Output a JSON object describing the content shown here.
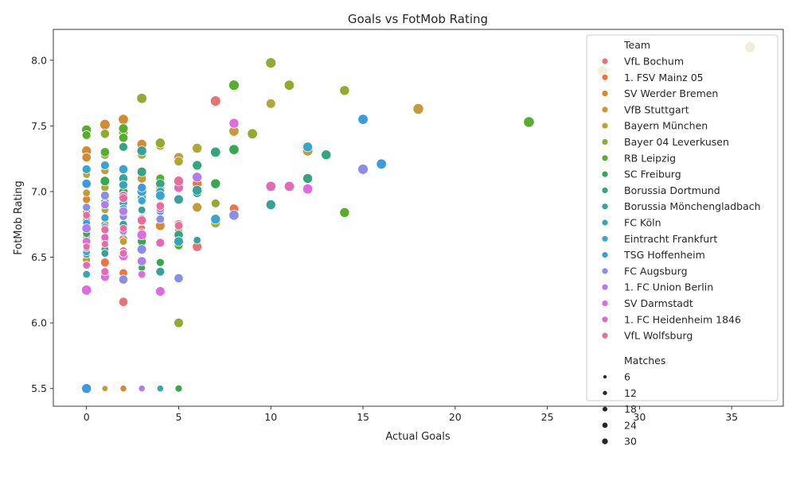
{
  "chart_data": {
    "type": "scatter",
    "title": "Goals vs FotMob Rating",
    "xlabel": "Actual Goals",
    "ylabel": "FotMob Rating",
    "xlim": [
      -1.8,
      37.8
    ],
    "ylim": [
      5.365,
      8.235
    ],
    "xticks": [
      0,
      5,
      10,
      15,
      20,
      25,
      30,
      35
    ],
    "yticks": [
      5.5,
      6.0,
      6.5,
      7.0,
      7.5,
      8.0
    ],
    "ytick_labels": [
      "5.5",
      "6.0",
      "6.5",
      "7.0",
      "7.5",
      "8.0"
    ],
    "grid": false,
    "legend": {
      "placement": "right",
      "team_title": "Team",
      "size_title": "Matches",
      "size_entries": [
        {
          "label": "6",
          "value": 6
        },
        {
          "label": "12",
          "value": 12
        },
        {
          "label": "18",
          "value": 18
        },
        {
          "label": "24",
          "value": 24
        },
        {
          "label": "30",
          "value": 30
        }
      ]
    },
    "series": [
      {
        "name": "VfL Bochum",
        "color": "#e8727a",
        "points": [
          [
            7,
            7.69,
            28
          ],
          [
            2,
            6.16,
            20
          ],
          [
            6,
            6.58,
            22
          ],
          [
            0,
            6.8,
            12
          ],
          [
            1,
            6.9,
            14
          ],
          [
            3,
            6.79,
            18
          ],
          [
            0,
            6.6,
            10
          ],
          [
            2,
            6.95,
            16
          ],
          [
            4,
            6.88,
            18
          ],
          [
            1,
            6.7,
            8
          ],
          [
            5,
            6.75,
            20
          ],
          [
            2,
            6.55,
            12
          ]
        ]
      },
      {
        "name": "1. FSV Mainz 05",
        "color": "#ee7440",
        "points": [
          [
            3,
            7.1,
            28
          ],
          [
            8,
            6.87,
            20
          ],
          [
            2,
            6.38,
            16
          ],
          [
            1,
            6.46,
            18
          ],
          [
            6,
            7.06,
            22
          ],
          [
            4,
            6.76,
            16
          ],
          [
            0,
            6.65,
            10
          ],
          [
            1,
            6.95,
            12
          ],
          [
            2,
            6.63,
            14
          ],
          [
            3,
            6.72,
            10
          ],
          [
            1,
            6.82,
            8
          ]
        ]
      },
      {
        "name": "SV Werder Bremen",
        "color": "#d48a33",
        "points": [
          [
            1,
            7.51,
            28
          ],
          [
            2,
            7.55,
            26
          ],
          [
            3,
            7.36,
            24
          ],
          [
            0,
            7.31,
            24
          ],
          [
            0,
            7.26,
            20
          ],
          [
            1,
            7.08,
            20
          ],
          [
            4,
            6.74,
            22
          ],
          [
            2,
            6.64,
            16
          ],
          [
            1,
            6.86,
            18
          ],
          [
            0,
            6.94,
            14
          ],
          [
            3,
            7.02,
            18
          ],
          [
            2,
            7.07,
            16
          ],
          [
            1,
            5.5,
            6
          ],
          [
            2,
            5.5,
            8
          ]
        ]
      },
      {
        "name": "VfB Stuttgart",
        "color": "#c49a3a",
        "points": [
          [
            18,
            7.63,
            30
          ],
          [
            12,
            7.31,
            28
          ],
          [
            8,
            7.46,
            26
          ],
          [
            5,
            7.26,
            24
          ],
          [
            6,
            6.88,
            22
          ],
          [
            4,
            7.03,
            18
          ],
          [
            3,
            7.1,
            20
          ],
          [
            2,
            6.9,
            16
          ],
          [
            1,
            7.16,
            14
          ],
          [
            0,
            6.99,
            12
          ],
          [
            2,
            6.62,
            12
          ],
          [
            0,
            6.48,
            14
          ],
          [
            1,
            5.5,
            6
          ]
        ]
      },
      {
        "name": "Bayern München",
        "color": "#b0a834",
        "points": [
          [
            36,
            8.1,
            30
          ],
          [
            28,
            7.92,
            28
          ],
          [
            10,
            7.67,
            22
          ],
          [
            6,
            7.33,
            24
          ],
          [
            7,
            6.76,
            22
          ],
          [
            5,
            7.23,
            20
          ],
          [
            3,
            7.28,
            18
          ],
          [
            4,
            7.35,
            20
          ],
          [
            2,
            7.04,
            16
          ],
          [
            1,
            7.03,
            14
          ],
          [
            0,
            7.13,
            12
          ],
          [
            1,
            6.86,
            10
          ],
          [
            5,
            6.7,
            14
          ],
          [
            0,
            6.72,
            10
          ],
          [
            3,
            5.5,
            6
          ]
        ]
      },
      {
        "name": "Bayer 04 Leverkusen",
        "color": "#90aa32",
        "points": [
          [
            10,
            7.98,
            28
          ],
          [
            11,
            7.81,
            26
          ],
          [
            14,
            7.77,
            24
          ],
          [
            3,
            7.71,
            26
          ],
          [
            9,
            7.44,
            26
          ],
          [
            4,
            7.37,
            24
          ],
          [
            2,
            7.45,
            22
          ],
          [
            1,
            7.44,
            20
          ],
          [
            5,
            6.0,
            22
          ],
          [
            1,
            7.28,
            18
          ],
          [
            0,
            7.17,
            16
          ],
          [
            2,
            7.06,
            16
          ],
          [
            7,
            6.91,
            18
          ],
          [
            1,
            6.75,
            14
          ],
          [
            0,
            6.65,
            12
          ]
        ]
      },
      {
        "name": "RB Leipzig",
        "color": "#56ae2c",
        "points": [
          [
            24,
            7.53,
            30
          ],
          [
            8,
            7.81,
            28
          ],
          [
            14,
            6.84,
            24
          ],
          [
            0,
            7.47,
            24
          ],
          [
            2,
            7.48,
            22
          ],
          [
            1,
            7.3,
            20
          ],
          [
            0,
            7.43,
            18
          ],
          [
            2,
            7.41,
            20
          ],
          [
            5,
            6.59,
            18
          ],
          [
            3,
            6.94,
            16
          ],
          [
            1,
            6.72,
            14
          ],
          [
            4,
            7.1,
            18
          ],
          [
            0,
            6.86,
            10
          ]
        ]
      },
      {
        "name": "SC Freiburg",
        "color": "#36a84e",
        "points": [
          [
            8,
            7.32,
            26
          ],
          [
            7,
            7.06,
            24
          ],
          [
            1,
            7.08,
            22
          ],
          [
            2,
            7.0,
            20
          ],
          [
            3,
            6.62,
            18
          ],
          [
            0,
            6.77,
            16
          ],
          [
            4,
            6.46,
            14
          ],
          [
            1,
            6.55,
            14
          ],
          [
            5,
            5.5,
            10
          ],
          [
            2,
            6.86,
            12
          ],
          [
            3,
            6.42,
            10
          ],
          [
            0,
            6.68,
            12
          ]
        ]
      },
      {
        "name": "Borussia Dortmund",
        "color": "#33a57f",
        "points": [
          [
            13,
            7.28,
            24
          ],
          [
            12,
            7.1,
            24
          ],
          [
            7,
            7.3,
            26
          ],
          [
            6,
            7.2,
            22
          ],
          [
            3,
            7.15,
            22
          ],
          [
            2,
            7.34,
            18
          ],
          [
            4,
            7.06,
            20
          ],
          [
            5,
            6.67,
            20
          ],
          [
            1,
            6.6,
            16
          ],
          [
            2,
            6.9,
            14
          ],
          [
            0,
            6.84,
            14
          ],
          [
            3,
            6.77,
            12
          ],
          [
            1,
            6.56,
            12
          ],
          [
            6,
            6.99,
            20
          ]
        ]
      },
      {
        "name": "Borussia Mönchengladbach",
        "color": "#36a39b",
        "points": [
          [
            10,
            6.9,
            24
          ],
          [
            6,
            7.01,
            24
          ],
          [
            5,
            6.94,
            22
          ],
          [
            3,
            7.31,
            24
          ],
          [
            2,
            7.1,
            20
          ],
          [
            4,
            6.39,
            18
          ],
          [
            1,
            6.96,
            18
          ],
          [
            0,
            7.06,
            16
          ],
          [
            2,
            6.75,
            14
          ],
          [
            1,
            6.53,
            12
          ],
          [
            3,
            6.86,
            12
          ],
          [
            6,
            6.63,
            12
          ],
          [
            0,
            6.52,
            10
          ]
        ]
      },
      {
        "name": "FC Köln",
        "color": "#38a4b4",
        "points": [
          [
            7,
            6.79,
            24
          ],
          [
            5,
            6.62,
            22
          ],
          [
            3,
            6.95,
            20
          ],
          [
            2,
            7.05,
            18
          ],
          [
            1,
            6.8,
            16
          ],
          [
            0,
            6.88,
            14
          ],
          [
            4,
            7.0,
            18
          ],
          [
            0,
            6.37,
            12
          ],
          [
            2,
            6.69,
            14
          ],
          [
            1,
            6.93,
            12
          ],
          [
            4,
            5.5,
            8
          ],
          [
            0,
            5.5,
            6
          ]
        ]
      },
      {
        "name": "Eintracht Frankfurt",
        "color": "#3aa4cf",
        "points": [
          [
            12,
            7.34,
            24
          ],
          [
            7,
            6.79,
            24
          ],
          [
            4,
            6.97,
            22
          ],
          [
            3,
            7.0,
            22
          ],
          [
            2,
            7.17,
            20
          ],
          [
            1,
            7.2,
            18
          ],
          [
            0,
            7.17,
            18
          ],
          [
            2,
            6.91,
            16
          ],
          [
            3,
            6.93,
            14
          ],
          [
            1,
            6.8,
            14
          ],
          [
            0,
            6.54,
            12
          ],
          [
            0,
            5.5,
            8
          ]
        ]
      },
      {
        "name": "TSG Hoffenheim",
        "color": "#3c9be0",
        "points": [
          [
            15,
            7.55,
            26
          ],
          [
            16,
            7.21,
            26
          ],
          [
            0,
            7.06,
            20
          ],
          [
            3,
            7.03,
            18
          ],
          [
            1,
            6.92,
            16
          ],
          [
            2,
            6.87,
            14
          ],
          [
            4,
            6.85,
            14
          ],
          [
            0,
            6.76,
            12
          ],
          [
            0,
            5.5,
            24
          ]
        ]
      },
      {
        "name": "FC Augsburg",
        "color": "#8a8ee8",
        "points": [
          [
            15,
            7.17,
            28
          ],
          [
            8,
            6.82,
            26
          ],
          [
            3,
            6.56,
            22
          ],
          [
            2,
            6.33,
            20
          ],
          [
            5,
            6.34,
            20
          ],
          [
            1,
            6.97,
            18
          ],
          [
            4,
            6.79,
            16
          ],
          [
            0,
            6.88,
            14
          ],
          [
            2,
            6.81,
            14
          ],
          [
            1,
            6.73,
            12
          ],
          [
            3,
            6.69,
            12
          ]
        ]
      },
      {
        "name": "1. FC Union Berlin",
        "color": "#b07ee8",
        "points": [
          [
            6,
            7.11,
            24
          ],
          [
            3,
            6.47,
            20
          ],
          [
            2,
            6.85,
            18
          ],
          [
            1,
            6.9,
            16
          ],
          [
            0,
            6.72,
            20
          ],
          [
            4,
            6.87,
            16
          ],
          [
            2,
            6.7,
            14
          ],
          [
            1,
            6.63,
            12
          ],
          [
            0,
            6.57,
            12
          ],
          [
            3,
            5.5,
            8
          ]
        ]
      },
      {
        "name": "SV Darmstadt",
        "color": "#df6be0",
        "points": [
          [
            12,
            7.02,
            26
          ],
          [
            8,
            7.52,
            24
          ],
          [
            3,
            6.67,
            24
          ],
          [
            4,
            6.24,
            22
          ],
          [
            2,
            6.51,
            22
          ],
          [
            1,
            6.38,
            20
          ],
          [
            0,
            6.25,
            26
          ],
          [
            1,
            6.35,
            18
          ],
          [
            0,
            6.62,
            16
          ],
          [
            2,
            6.53,
            14
          ],
          [
            3,
            6.37,
            12
          ]
        ]
      },
      {
        "name": "1. FC Heidenheim 1846",
        "color": "#e668bb",
        "points": [
          [
            10,
            7.04,
            26
          ],
          [
            11,
            7.04,
            26
          ],
          [
            5,
            7.03,
            22
          ],
          [
            4,
            6.61,
            18
          ],
          [
            3,
            6.79,
            18
          ],
          [
            2,
            6.97,
            18
          ],
          [
            1,
            6.65,
            14
          ],
          [
            0,
            6.44,
            12
          ],
          [
            1,
            6.39,
            14
          ],
          [
            2,
            6.53,
            12
          ],
          [
            4,
            6.89,
            14
          ]
        ]
      },
      {
        "name": "VfL Wolfsburg",
        "color": "#ea6c9d",
        "points": [
          [
            5,
            7.08,
            24
          ],
          [
            3,
            6.78,
            20
          ],
          [
            2,
            6.95,
            18
          ],
          [
            4,
            6.89,
            16
          ],
          [
            1,
            6.71,
            14
          ],
          [
            0,
            6.82,
            12
          ],
          [
            2,
            6.72,
            12
          ],
          [
            1,
            6.6,
            10
          ],
          [
            5,
            6.74,
            16
          ],
          [
            0,
            6.58,
            10
          ]
        ]
      }
    ]
  }
}
